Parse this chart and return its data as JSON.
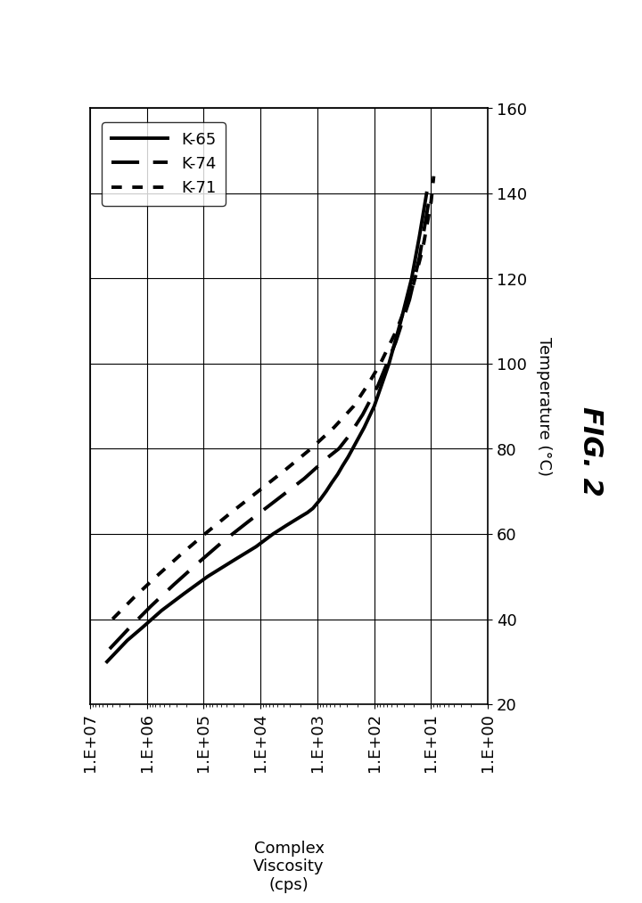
{
  "title": "FIG. 2",
  "xlabel_lines": "Complex\nViscosity\n(cps)",
  "ylabel": "Temperature (°C)",
  "x_tick_values": [
    10000000.0,
    1000000.0,
    100000.0,
    10000.0,
    1000.0,
    100.0,
    10.0,
    1.0
  ],
  "x_tick_labels": [
    "1.E+07",
    "1.E+06",
    "1.E+05",
    "1.E+04",
    "1.E+03",
    "1.E+02",
    "1.E+01",
    "1.E+00"
  ],
  "xlim": [
    10000000.0,
    1.0
  ],
  "ylim": [
    20,
    160
  ],
  "y_ticks": [
    20,
    40,
    60,
    80,
    100,
    120,
    140,
    160
  ],
  "series": [
    {
      "label": "K-65",
      "linestyle": "solid",
      "linewidth": 2.8,
      "color": "#000000",
      "temp": [
        30,
        35,
        38,
        42,
        46,
        50,
        54,
        57,
        60,
        62,
        64,
        65,
        66,
        68,
        70,
        72,
        74,
        76,
        78,
        80,
        85,
        90,
        100,
        110,
        120,
        130,
        140
      ],
      "visc": [
        5000000,
        2200000,
        1200000,
        550000,
        220000,
        85000,
        28000,
        12000,
        6000,
        3500,
        2000,
        1500,
        1200,
        900,
        700,
        560,
        440,
        360,
        290,
        240,
        150,
        100,
        55,
        34,
        22,
        16,
        12
      ]
    },
    {
      "label": "K-74",
      "linestyle": "dashed",
      "linewidth": 2.8,
      "color": "#000000",
      "temp": [
        33,
        38,
        43,
        48,
        53,
        58,
        63,
        68,
        73,
        78,
        80,
        83,
        88,
        95,
        105,
        115,
        125,
        138
      ],
      "visc": [
        4500000,
        2000000,
        850000,
        340000,
        130000,
        48000,
        16000,
        5200,
        1700,
        650,
        420,
        280,
        160,
        85,
        42,
        24,
        16,
        11
      ]
    },
    {
      "label": "K-71",
      "linestyle": "dotted",
      "linewidth": 2.8,
      "color": "#000000",
      "temp": [
        40,
        45,
        50,
        55,
        60,
        65,
        70,
        75,
        80,
        85,
        90,
        95,
        100,
        108,
        117,
        127,
        138,
        144
      ],
      "visc": [
        4000000,
        1700000,
        680000,
        260000,
        95000,
        33000,
        11000,
        3700,
        1300,
        510,
        230,
        130,
        78,
        40,
        22,
        14,
        10,
        9
      ]
    }
  ],
  "legend_labels": [
    "K-65",
    "K-74",
    "K-71"
  ],
  "legend_linestyles": [
    "solid",
    "dashed",
    "dotted"
  ],
  "background_color": "#ffffff",
  "figsize_cm": [
    18.29,
    25.74
  ],
  "dpi": 100
}
